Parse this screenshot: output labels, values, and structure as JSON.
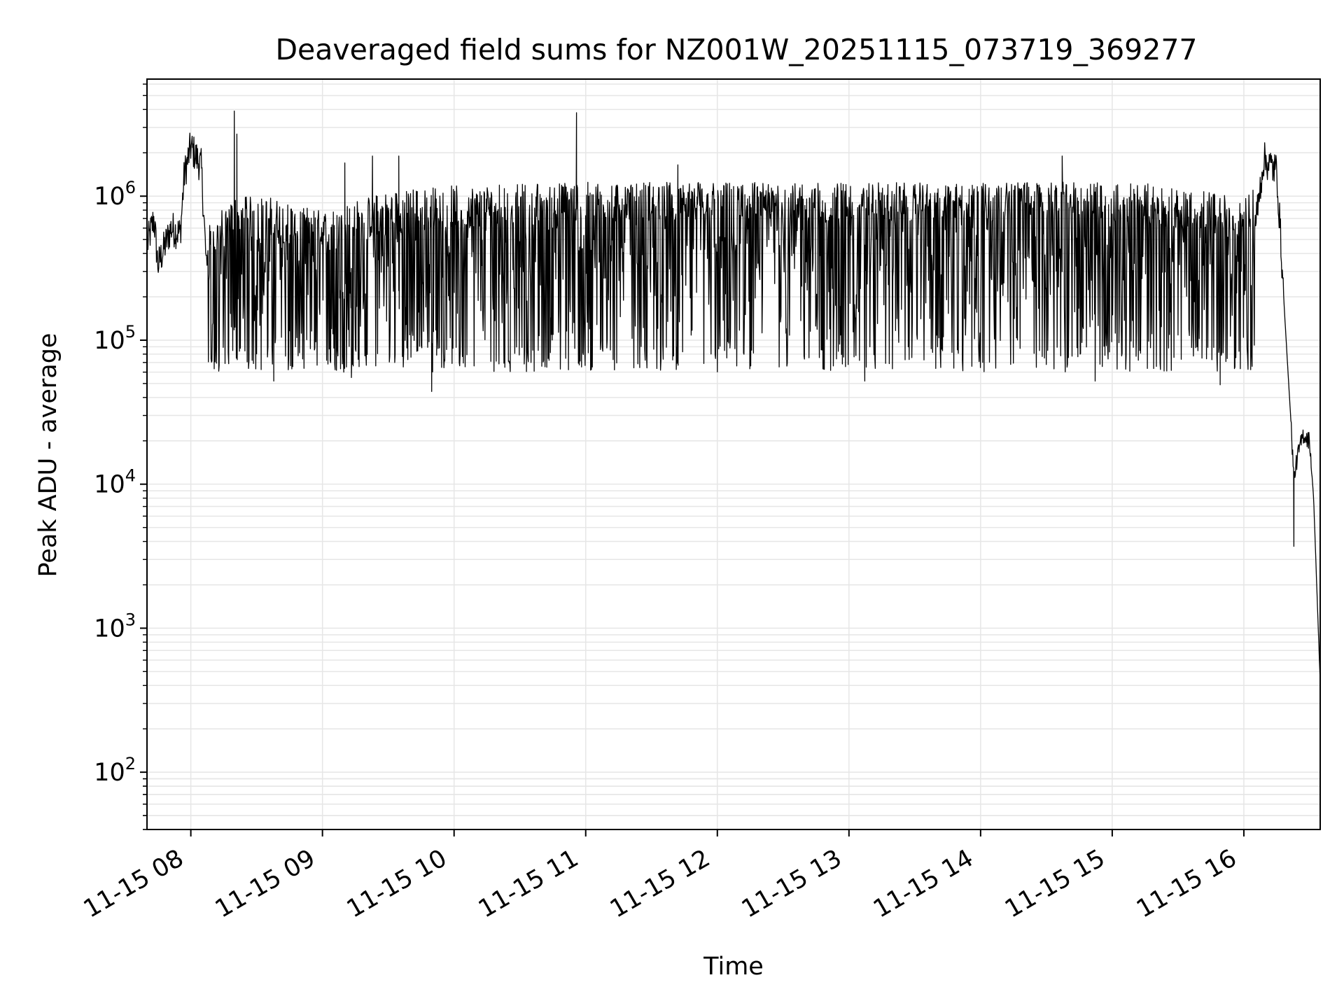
{
  "chart_data": {
    "type": "line",
    "title": "Deaveraged field sums for NZ001W_20251115_073719_369277",
    "xlabel": "Time",
    "ylabel": "Peak ADU - average",
    "yscale": "log",
    "ylim": [
      40,
      6500000
    ],
    "xlim_hours": [
      7.667,
      16.58
    ],
    "x_ticks": [
      {
        "hour": 8,
        "label": "11-15 08"
      },
      {
        "hour": 9,
        "label": "11-15 09"
      },
      {
        "hour": 10,
        "label": "11-15 10"
      },
      {
        "hour": 11,
        "label": "11-15 11"
      },
      {
        "hour": 12,
        "label": "11-15 12"
      },
      {
        "hour": 13,
        "label": "11-15 13"
      },
      {
        "hour": 14,
        "label": "11-15 14"
      },
      {
        "hour": 15,
        "label": "11-15 15"
      },
      {
        "hour": 16,
        "label": "11-15 16"
      }
    ],
    "y_ticks": [
      {
        "value": 100,
        "base": "10",
        "exp": "2"
      },
      {
        "value": 1000,
        "base": "10",
        "exp": "3"
      },
      {
        "value": 10000,
        "base": "10",
        "exp": "4"
      },
      {
        "value": 100000,
        "base": "10",
        "exp": "5"
      },
      {
        "value": 1000000,
        "base": "10",
        "exp": "6"
      }
    ],
    "grid": true,
    "line_color": "#000000",
    "grid_color": "#e6e6e6",
    "series": [
      {
        "name": "field sums",
        "anchors": [
          {
            "hour": 7.667,
            "value": 450000
          },
          {
            "hour": 7.72,
            "value": 700000
          },
          {
            "hour": 7.75,
            "value": 330000
          },
          {
            "hour": 7.85,
            "value": 600000
          },
          {
            "hour": 7.92,
            "value": 550000
          },
          {
            "hour": 7.95,
            "value": 1400000
          },
          {
            "hour": 8.0,
            "value": 2200000
          },
          {
            "hour": 8.08,
            "value": 1600000
          },
          {
            "hour": 8.12,
            "value": 300000
          },
          {
            "hour": 8.3,
            "value": 500000
          },
          {
            "hour": 8.6,
            "value": 500000
          },
          {
            "hour": 9.0,
            "value": 400000
          },
          {
            "hour": 9.5,
            "value": 550000
          },
          {
            "hour": 10.0,
            "value": 600000
          },
          {
            "hour": 11.0,
            "value": 650000
          },
          {
            "hour": 12.0,
            "value": 700000
          },
          {
            "hour": 13.0,
            "value": 650000
          },
          {
            "hour": 14.0,
            "value": 700000
          },
          {
            "hour": 14.7,
            "value": 800000
          },
          {
            "hour": 15.0,
            "value": 650000
          },
          {
            "hour": 15.8,
            "value": 550000
          },
          {
            "hour": 16.0,
            "value": 450000
          },
          {
            "hour": 16.1,
            "value": 750000
          },
          {
            "hour": 16.15,
            "value": 1800000
          },
          {
            "hour": 16.25,
            "value": 1500000
          },
          {
            "hour": 16.28,
            "value": 500000
          },
          {
            "hour": 16.31,
            "value": 150000
          },
          {
            "hour": 16.36,
            "value": 25000
          },
          {
            "hour": 16.38,
            "value": 11000
          },
          {
            "hour": 16.41,
            "value": 16000
          },
          {
            "hour": 16.45,
            "value": 22000
          },
          {
            "hour": 16.5,
            "value": 20000
          },
          {
            "hour": 16.53,
            "value": 8000
          },
          {
            "hour": 16.58,
            "value": 420
          }
        ],
        "spikes": [
          {
            "hour": 8.33,
            "value": 3900000
          },
          {
            "hour": 8.35,
            "value": 2700000
          },
          {
            "hour": 8.63,
            "value": 52000
          },
          {
            "hour": 9.17,
            "value": 1700000
          },
          {
            "hour": 9.22,
            "value": 55000
          },
          {
            "hour": 9.38,
            "value": 1900000
          },
          {
            "hour": 9.58,
            "value": 1900000
          },
          {
            "hour": 9.83,
            "value": 44000
          },
          {
            "hour": 10.93,
            "value": 3800000
          },
          {
            "hour": 11.7,
            "value": 1650000
          },
          {
            "hour": 13.12,
            "value": 52000
          },
          {
            "hour": 14.62,
            "value": 1900000
          },
          {
            "hour": 14.87,
            "value": 52000
          },
          {
            "hour": 15.82,
            "value": 49000
          },
          {
            "hour": 16.38,
            "value": 3700
          }
        ]
      }
    ]
  }
}
